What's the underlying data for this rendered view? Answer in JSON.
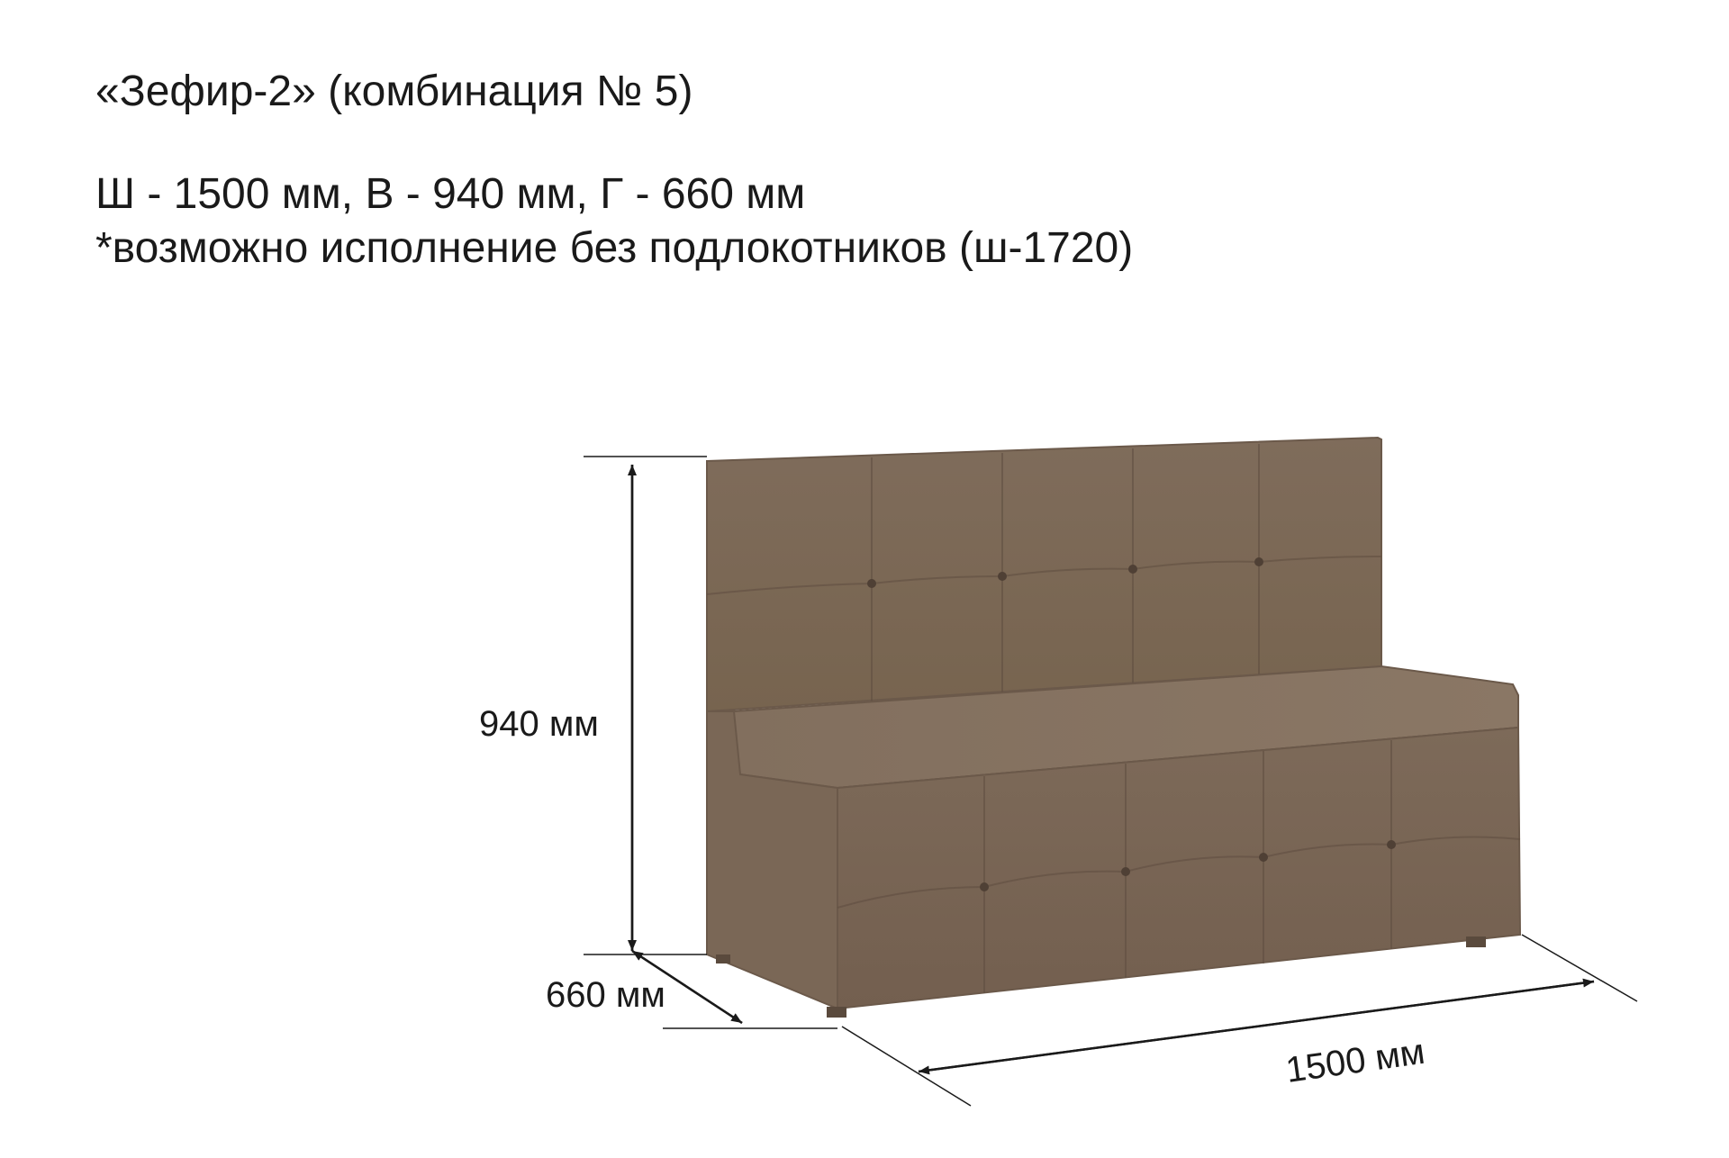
{
  "title": "«Зефир-2» (комбинация № 5)",
  "specs": {
    "line1": "Ш  - 1500 мм, В - 940 мм, Г - 660 мм",
    "line2": "*возможно исполнение без подлокотников (ш-1720)"
  },
  "dimensions": {
    "height_label": "940 мм",
    "depth_label": "660 мм",
    "width_label": "1500 мм"
  },
  "colors": {
    "upholstery": "#7d6a59",
    "upholstery_dark": "#6b594a",
    "upholstery_light": "#8a7765",
    "line": "#1a1a1a"
  }
}
